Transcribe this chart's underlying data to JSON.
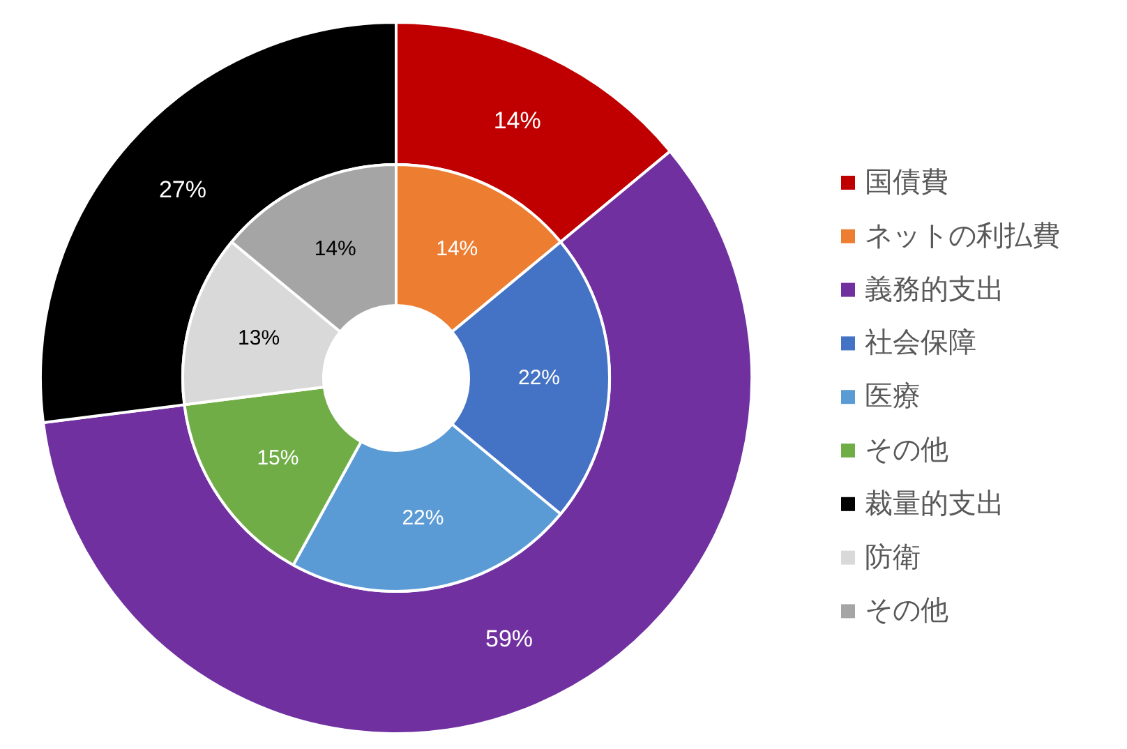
{
  "chart_data": {
    "type": "donut",
    "categories": [
      "国債費",
      "ネットの利払費",
      "義務的支出",
      "社会保障",
      "医療",
      "その他",
      "裁量的支出",
      "防衛",
      "その他"
    ],
    "colors": [
      "#c00000",
      "#ed7d31",
      "#7030a0",
      "#4472c4",
      "#5b9bd5",
      "#70ad47",
      "#000000",
      "#d9d9d9",
      "#a5a5a5"
    ],
    "series": [
      {
        "values": [
          14,
          null,
          59,
          null,
          null,
          null,
          27,
          null,
          null
        ],
        "value_labels": [
          "14%",
          null,
          "59%",
          null,
          null,
          null,
          "27%",
          null,
          null
        ]
      },
      {
        "values": [
          null,
          14,
          null,
          22,
          22,
          15,
          null,
          13,
          14
        ],
        "value_labels": [
          null,
          "14%",
          null,
          "22%",
          "22%",
          "15%",
          null,
          "13%",
          "14%"
        ]
      }
    ],
    "legend": "right"
  }
}
